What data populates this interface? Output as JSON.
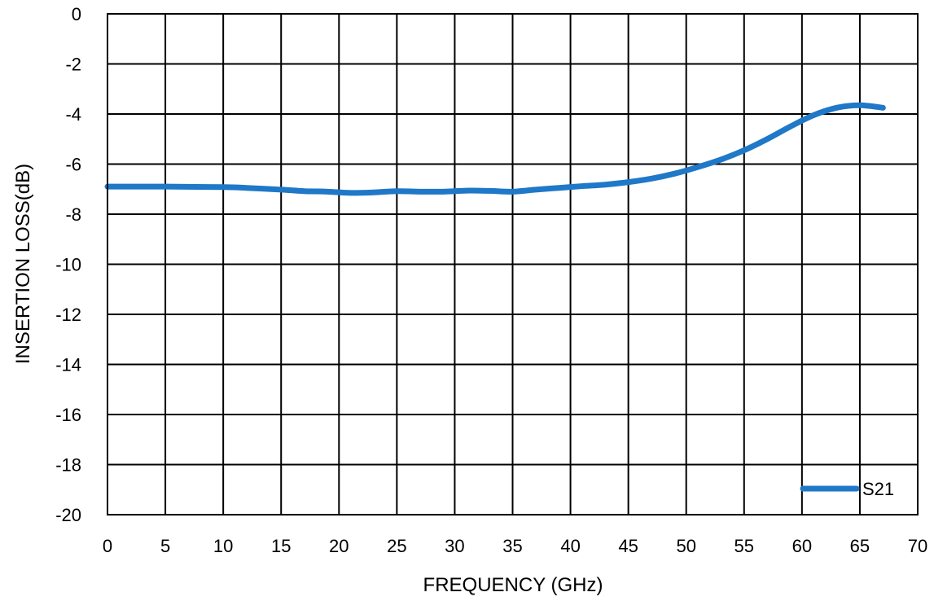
{
  "chart_data": {
    "type": "line",
    "title": "",
    "xlabel": "FREQUENCY (GHz)",
    "ylabel": "INSERTION LOSS(dB)",
    "xlim": [
      0,
      70
    ],
    "ylim": [
      -20,
      0
    ],
    "xticks": [
      0,
      5,
      10,
      15,
      20,
      25,
      30,
      35,
      40,
      45,
      50,
      55,
      60,
      65,
      70
    ],
    "yticks": [
      0,
      -2,
      -4,
      -6,
      -8,
      -10,
      -12,
      -14,
      -16,
      -18,
      -20
    ],
    "grid": true,
    "legend_position": "bottom-right",
    "series": [
      {
        "name": "S21",
        "color": "#1f78c8",
        "x": [
          0,
          5,
          10,
          12,
          15,
          17,
          19,
          21,
          23,
          25,
          27,
          29,
          31,
          33,
          35,
          37,
          39,
          41,
          43,
          45,
          47,
          49,
          51,
          53,
          55,
          57,
          59,
          61,
          63,
          65,
          67
        ],
        "y": [
          -6.9,
          -6.9,
          -6.92,
          -6.95,
          -7.02,
          -7.08,
          -7.1,
          -7.15,
          -7.13,
          -7.08,
          -7.1,
          -7.1,
          -7.06,
          -7.07,
          -7.1,
          -7.02,
          -6.95,
          -6.88,
          -6.82,
          -6.72,
          -6.58,
          -6.38,
          -6.12,
          -5.82,
          -5.45,
          -5.0,
          -4.5,
          -4.05,
          -3.75,
          -3.65,
          -3.75
        ]
      }
    ]
  }
}
